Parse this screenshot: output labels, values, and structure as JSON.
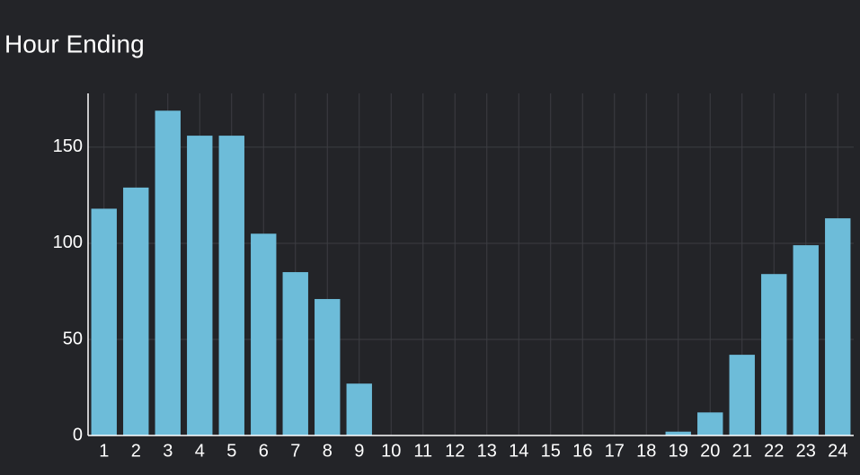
{
  "chart_data": {
    "type": "bar",
    "title": "Hour Ending",
    "categories": [
      "1",
      "2",
      "3",
      "4",
      "5",
      "6",
      "7",
      "8",
      "9",
      "10",
      "11",
      "12",
      "13",
      "14",
      "15",
      "16",
      "17",
      "18",
      "19",
      "20",
      "21",
      "22",
      "23",
      "24"
    ],
    "values": [
      118,
      129,
      169,
      156,
      156,
      105,
      85,
      71,
      27,
      0,
      0,
      0,
      0,
      0,
      0,
      0,
      0,
      0,
      2,
      12,
      42,
      84,
      99,
      113
    ],
    "color": "#6dbcd9",
    "ylim": [
      0,
      178
    ],
    "yticks": [
      0,
      50,
      100,
      150
    ],
    "grid": true
  }
}
